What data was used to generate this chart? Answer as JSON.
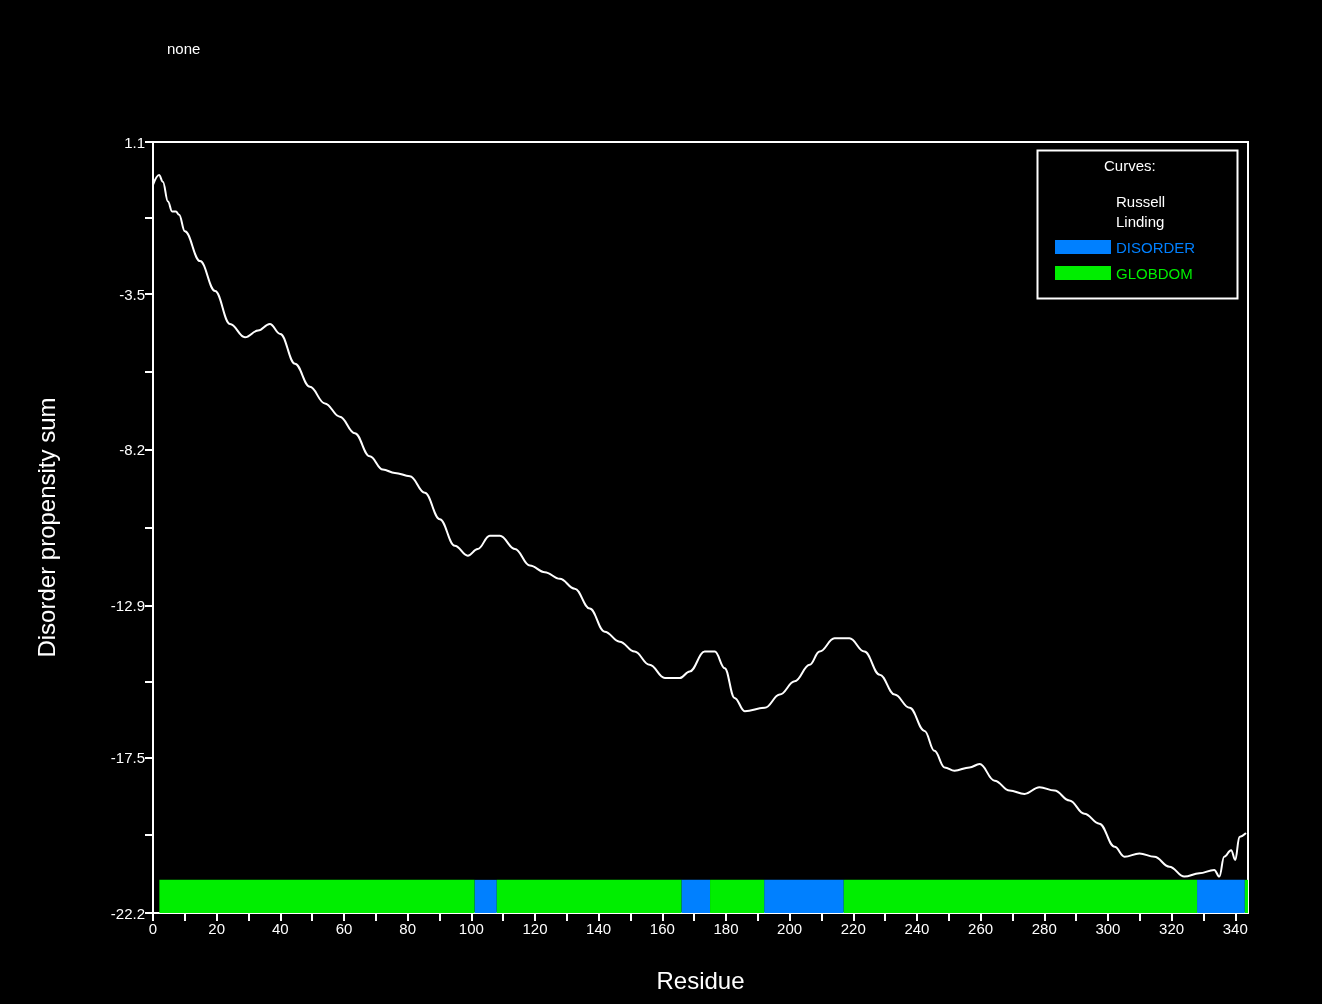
{
  "chart_data": {
    "type": "line",
    "title": "none",
    "xlabel": "Residue",
    "ylabel": "Disorder propensity sum",
    "legend_title": "Curves:",
    "legend": "top right",
    "grid": false,
    "marker": "none",
    "line_style": "solid",
    "xlim": [
      0,
      344
    ],
    "ylim": [
      -22.2,
      1.1
    ],
    "xticks": [
      0,
      {
        "value": 10,
        "label": null
      },
      20,
      {
        "value": 30,
        "label": null
      },
      40,
      {
        "value": 50,
        "label": null
      },
      60,
      {
        "value": 70,
        "label": null
      },
      80,
      {
        "value": 90,
        "label": null
      },
      100,
      {
        "value": 110,
        "label": null
      },
      120,
      {
        "value": 130,
        "label": null
      },
      140,
      {
        "value": 150,
        "label": null
      },
      160,
      {
        "value": 170,
        "label": null
      },
      180,
      {
        "value": 190,
        "label": null
      },
      200,
      {
        "value": 210,
        "label": null
      },
      220,
      {
        "value": 230,
        "label": null
      },
      240,
      {
        "value": 250,
        "label": null
      },
      260,
      {
        "value": 270,
        "label": null
      },
      280,
      {
        "value": 290,
        "label": null
      },
      300,
      {
        "value": 310,
        "label": null
      },
      320,
      {
        "value": 330,
        "label": null
      },
      340
    ],
    "yticks": [
      1.1,
      {
        "value": -1.2,
        "label": null
      },
      -3.5,
      {
        "value": -5.85,
        "label": null
      },
      -8.2,
      {
        "value": -10.55,
        "label": null
      },
      -12.9,
      {
        "value": -15.2,
        "label": null
      },
      -17.5,
      {
        "value": -19.85,
        "label": null
      },
      -22.2
    ],
    "series": [
      {
        "name": "Russell Linding",
        "color": "#ffffff",
        "x": [
          0,
          1.9,
          3.1,
          4.7,
          6,
          7.2,
          8.2,
          10,
          14.8,
          19.5,
          24.2,
          28.9,
          33,
          36.7,
          40,
          44.6,
          49.3,
          54,
          58.7,
          63.4,
          68.1,
          72.2,
          76,
          80.7,
          85.4,
          90.1,
          94.8,
          98.9,
          102,
          105.8,
          109,
          113.7,
          118.4,
          123.1,
          127.8,
          132.5,
          137.2,
          141.9,
          146.6,
          151.3,
          156,
          160.8,
          165.5,
          168.6,
          173.3,
          176.5,
          179.6,
          182.7,
          185.9,
          192.2,
          196.9,
          201.6,
          206.3,
          209.4,
          214.1,
          218.8,
          223.5,
          228.3,
          233,
          237.7,
          242.4,
          245.5,
          248.7,
          251.8,
          256.5,
          259.7,
          264.4,
          269.1,
          273.8,
          278.5,
          283.2,
          287.9,
          292.6,
          297.3,
          302.1,
          305.2,
          309.9,
          314.6,
          319.3,
          324,
          328.7,
          333.4,
          335,
          336.5,
          338.7,
          340,
          341.3,
          343.2
        ],
        "values": [
          -0.2,
          0.1,
          -0.1,
          -0.7,
          -1.0,
          -1.0,
          -1.1,
          -1.6,
          -2.5,
          -3.4,
          -4.4,
          -4.8,
          -4.6,
          -4.4,
          -4.7,
          -5.6,
          -6.3,
          -6.8,
          -7.2,
          -7.7,
          -8.4,
          -8.8,
          -8.9,
          -9.0,
          -9.5,
          -10.3,
          -11.1,
          -11.4,
          -11.2,
          -10.8,
          -10.8,
          -11.2,
          -11.7,
          -11.9,
          -12.1,
          -12.4,
          -13.0,
          -13.7,
          -14.0,
          -14.3,
          -14.7,
          -15.1,
          -15.1,
          -14.9,
          -14.3,
          -14.3,
          -14.8,
          -15.7,
          -16.1,
          -16.0,
          -15.6,
          -15.2,
          -14.7,
          -14.3,
          -13.9,
          -13.9,
          -14.3,
          -15.0,
          -15.6,
          -16.0,
          -16.7,
          -17.3,
          -17.8,
          -17.9,
          -17.8,
          -17.7,
          -18.2,
          -18.5,
          -18.6,
          -18.4,
          -18.5,
          -18.8,
          -19.2,
          -19.5,
          -20.2,
          -20.5,
          -20.4,
          -20.5,
          -20.8,
          -21.1,
          -21.0,
          -20.9,
          -21.1,
          -20.5,
          -20.3,
          -20.6,
          -19.9,
          -19.8
        ]
      }
    ],
    "bands": [
      {
        "axis": "x",
        "from": 2,
        "to": 101,
        "color": "#00ee00"
      },
      {
        "axis": "x",
        "from": 101,
        "to": 108,
        "label": "DISORDER",
        "color": "#0080ff"
      },
      {
        "axis": "x",
        "from": 108,
        "to": 166,
        "label": "GLOBDOM",
        "color": "#00ee00"
      },
      {
        "axis": "x",
        "from": 166,
        "to": 175,
        "color": "#0080ff"
      },
      {
        "axis": "x",
        "from": 175,
        "to": 192,
        "color": "#00ee00"
      },
      {
        "axis": "x",
        "from": 192,
        "to": 217,
        "color": "#0080ff"
      },
      {
        "axis": "x",
        "from": 217,
        "to": 328,
        "color": "#00ee00"
      },
      {
        "axis": "x",
        "from": 328,
        "to": 343,
        "color": "#0080ff"
      },
      {
        "axis": "x",
        "from": 343,
        "to": 344,
        "color": "#00ee00"
      }
    ]
  }
}
